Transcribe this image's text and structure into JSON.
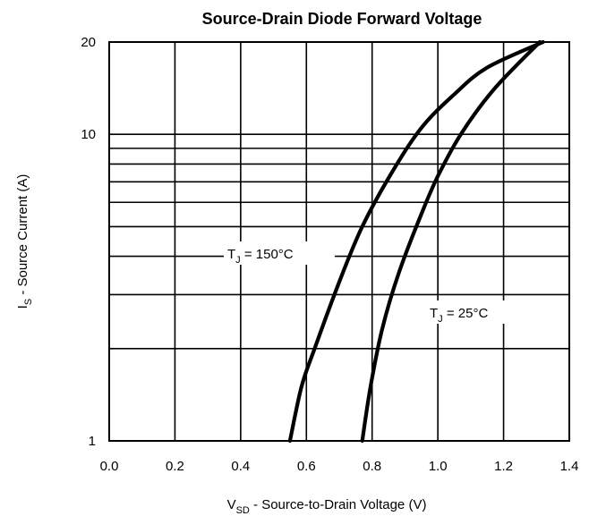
{
  "chart_data": {
    "type": "line",
    "title": "Source-Drain Diode Forward Voltage",
    "xlabel": {
      "main": "V",
      "sub": "SD",
      "rest": " -  Source-to-Drain Voltage (V)"
    },
    "ylabel": {
      "main": "I",
      "sub": "S",
      "rest": " -  Source Current (A)"
    },
    "xlim": [
      0.0,
      1.4
    ],
    "ylim": [
      1,
      20
    ],
    "yscale": "log",
    "grid": true,
    "x_ticks": [
      "0.0",
      "0.2",
      "0.4",
      "0.6",
      "0.8",
      "1.0",
      "1.2",
      "1.4"
    ],
    "x_tick_values": [
      0.0,
      0.2,
      0.4,
      0.6,
      0.8,
      1.0,
      1.2,
      1.4
    ],
    "y_ticks": [
      "1",
      "10",
      "20"
    ],
    "y_tick_values": [
      1,
      10,
      20
    ],
    "y_grid_values": [
      2,
      3,
      4,
      5,
      6,
      7,
      8,
      9,
      10
    ],
    "series": [
      {
        "name": "T_J = 150°C",
        "label": {
          "main": "T",
          "sub": "J",
          "rest": " = 150°C"
        },
        "color": "#000000",
        "points": [
          [
            0.55,
            1
          ],
          [
            0.585,
            1.5
          ],
          [
            0.625,
            2
          ],
          [
            0.7,
            3.3
          ],
          [
            0.77,
            5
          ],
          [
            0.86,
            7.5
          ],
          [
            0.95,
            10.5
          ],
          [
            1.05,
            13.5
          ],
          [
            1.15,
            16.5
          ],
          [
            1.32,
            20
          ]
        ]
      },
      {
        "name": "T_J = 25°C",
        "label": {
          "main": "T",
          "sub": "J",
          "rest": " = 25°C"
        },
        "color": "#000000",
        "points": [
          [
            0.77,
            1
          ],
          [
            0.795,
            1.5
          ],
          [
            0.83,
            2.3
          ],
          [
            0.88,
            3.5
          ],
          [
            0.95,
            5.5
          ],
          [
            1.0,
            7.3
          ],
          [
            1.07,
            10
          ],
          [
            1.17,
            14
          ],
          [
            1.31,
            20
          ]
        ]
      }
    ]
  }
}
